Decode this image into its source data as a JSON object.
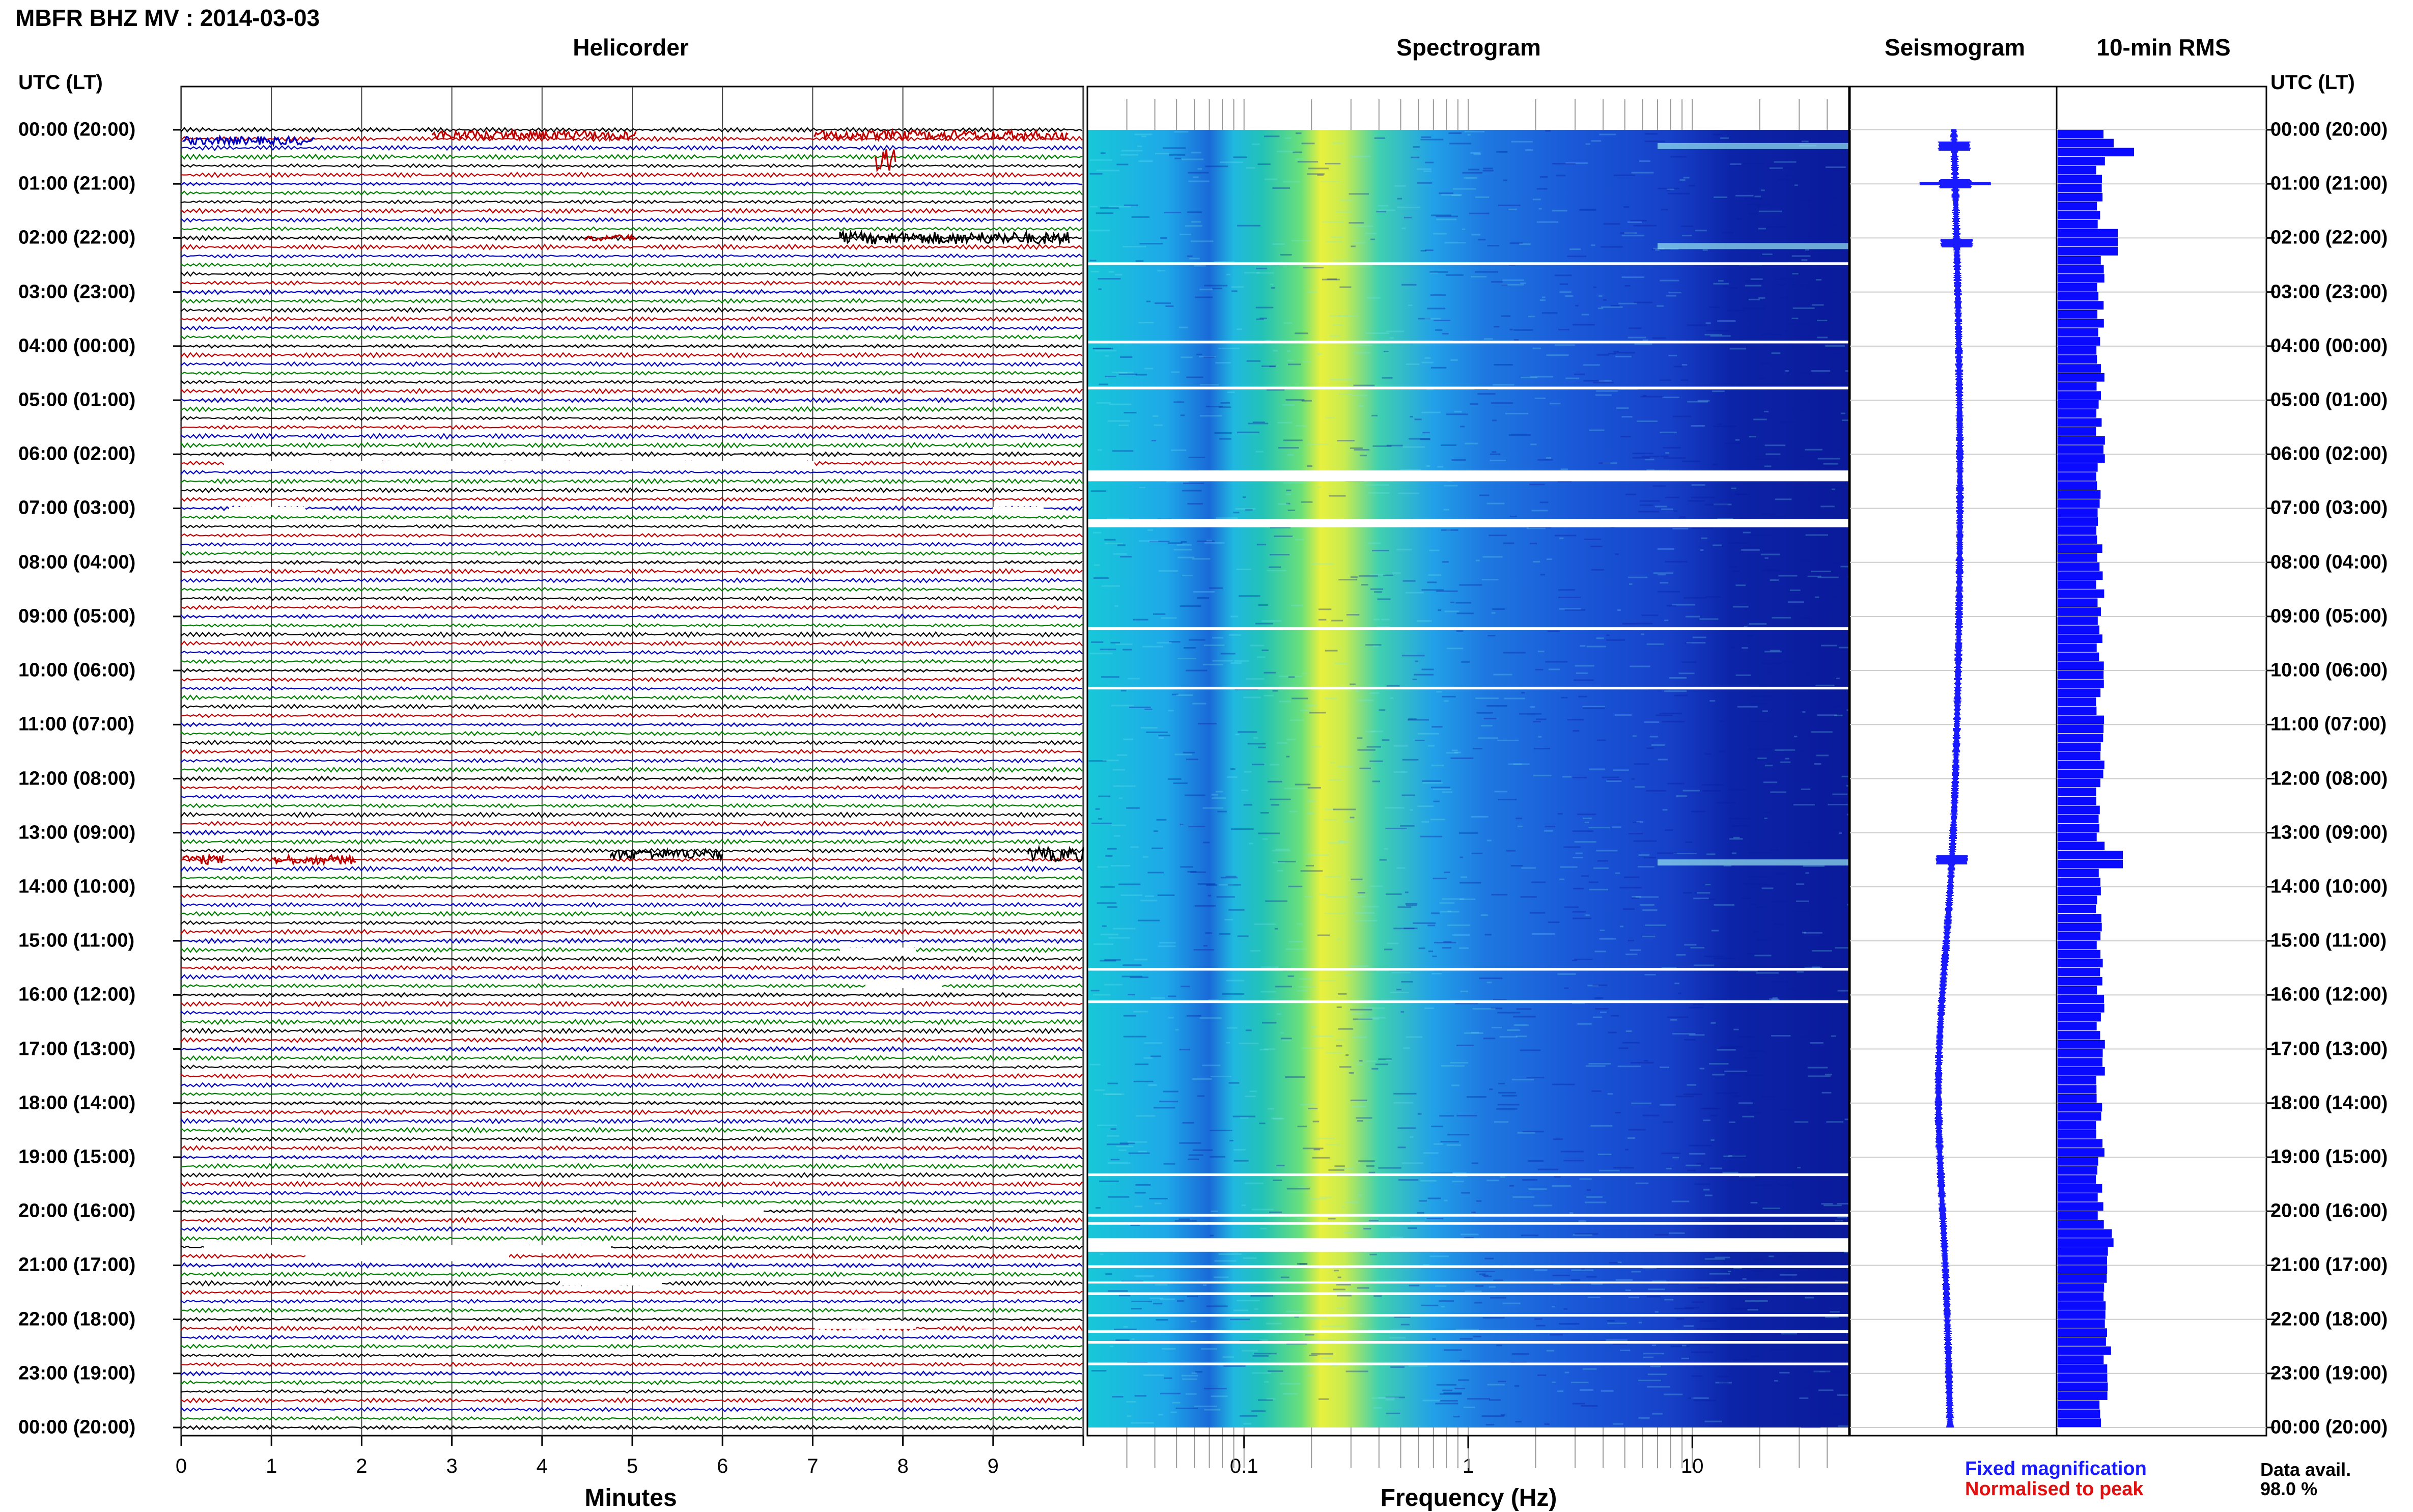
{
  "header": {
    "title": "MBFR BHZ MV : 2014-03-03"
  },
  "panels": {
    "helicorder": "Helicorder",
    "spectrogram": "Spectrogram",
    "seismogram": "Seismogram",
    "rms": "10-min RMS"
  },
  "axes": {
    "time_axis_label": "UTC (LT)",
    "time_ticks": [
      "00:00 (20:00)",
      "01:00 (21:00)",
      "02:00 (22:00)",
      "03:00 (23:00)",
      "04:00 (00:00)",
      "05:00 (01:00)",
      "06:00 (02:00)",
      "07:00 (03:00)",
      "08:00 (04:00)",
      "09:00 (05:00)",
      "10:00 (06:00)",
      "11:00 (07:00)",
      "12:00 (08:00)",
      "13:00 (09:00)",
      "14:00 (10:00)",
      "15:00 (11:00)",
      "16:00 (12:00)",
      "17:00 (13:00)",
      "18:00 (14:00)",
      "19:00 (15:00)",
      "20:00 (16:00)",
      "21:00 (17:00)",
      "22:00 (18:00)",
      "23:00 (19:00)",
      "00:00 (20:00)"
    ],
    "minutes_label": "Minutes",
    "minutes_ticks": [
      "0",
      "1",
      "2",
      "3",
      "4",
      "5",
      "6",
      "7",
      "8",
      "9"
    ],
    "frequency_label": "Frequency (Hz)",
    "frequency_ticks": [
      "0.1",
      "1",
      "10"
    ]
  },
  "legend": {
    "fixed": "Fixed magnification",
    "normalised": "Normalised to peak"
  },
  "availability": {
    "label": "Data avail.",
    "value": "98.0 %"
  },
  "colors": {
    "trace_cycle": [
      "#000000",
      "#c00000",
      "#0000c0",
      "#008000"
    ],
    "seismogram": "#1a1aff",
    "rms": "#0a0aff"
  },
  "chart_data": [
    {
      "type": "line",
      "title": "Helicorder",
      "xlabel": "Minutes",
      "x_range_minutes": [
        0,
        10
      ],
      "trace_interval_minutes": 10,
      "time_range_hours_utc": [
        0,
        24
      ],
      "events_utc_hours": [
        0.15,
        0.6,
        1.1,
        2.0,
        13.5
      ]
    },
    {
      "type": "heatmap",
      "title": "Spectrogram",
      "xlabel": "Frequency (Hz)",
      "x_scale": "log",
      "x_range_hz": [
        0.02,
        50
      ],
      "dominant_band_hz": [
        0.18,
        0.35
      ],
      "data_gaps_utc_hours": [
        6.35,
        7.25,
        20.5,
        20.75
      ]
    },
    {
      "type": "line",
      "title": "Seismogram",
      "events_utc_hours": [
        0.3,
        1.0,
        2.1,
        13.5
      ]
    },
    {
      "type": "bar",
      "title": "10-min RMS",
      "interval_minutes": 10,
      "peaks_utc_hours": [
        0.3,
        2.0,
        13.4
      ]
    }
  ]
}
